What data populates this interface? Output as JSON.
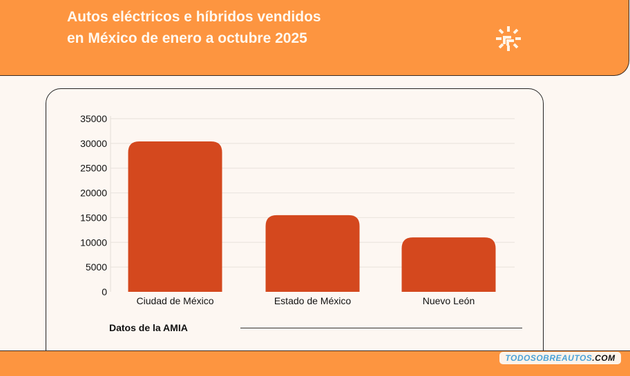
{
  "header": {
    "title": "Autos eléctricos e híbridos vendidos en México de enero a octubre 2025",
    "logo_icon": "sun-arrows-logo-icon"
  },
  "colors": {
    "header": "#fd9540",
    "bar": "#d4481e",
    "background": "#fdf7f2"
  },
  "chart_data": {
    "type": "bar",
    "categories": [
      "Ciudad de México",
      "Estado de México",
      "Nuevo León"
    ],
    "values": [
      30400,
      15500,
      11000
    ],
    "yticks": [
      "0",
      "5000",
      "10000",
      "15000",
      "20000",
      "25000",
      "30000",
      "35000"
    ],
    "ylim": [
      0,
      35000
    ],
    "grid": true,
    "title": "",
    "xlabel": "",
    "ylabel": ""
  },
  "source": "Datos de la AMIA",
  "watermark": {
    "part1": "TODOSOBREAUTOS",
    "part2": ".COM"
  }
}
